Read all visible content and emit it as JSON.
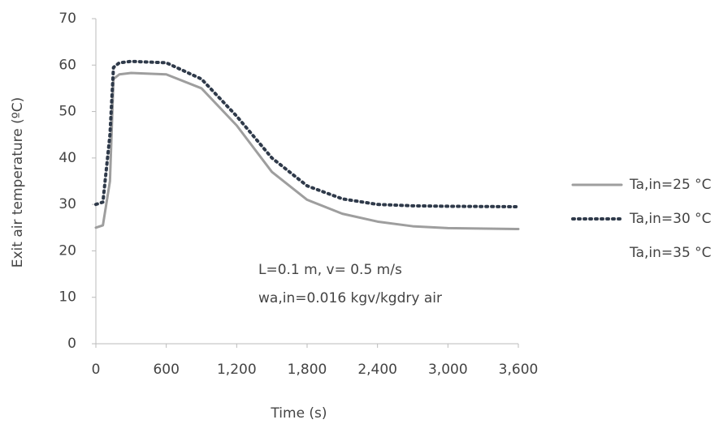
{
  "chart_data": {
    "type": "line",
    "x_label": "Time (s)",
    "y_label": "Exit air temperature (ºC)",
    "annotations": [
      "L=0.1 m, v= 0.5 m/s",
      "wa,in=0.016 kgv/kgdry air"
    ],
    "x": [
      0,
      60,
      120,
      150,
      200,
      300,
      600,
      900,
      1200,
      1500,
      1800,
      2100,
      2400,
      2700,
      3000,
      3600
    ],
    "series": [
      {
        "name": "Ta,in=25 °C",
        "color": "#9e9e9e",
        "style": "solid",
        "values": [
          25,
          25.5,
          35,
          57,
          58,
          58.3,
          58,
          55,
          47,
          37,
          31,
          28,
          26.3,
          25.3,
          24.9,
          24.7
        ]
      },
      {
        "name": "Ta,in=30 °C",
        "color": "#2f3a4a",
        "style": "dotted",
        "values": [
          30,
          30.5,
          45,
          59.5,
          60.5,
          60.8,
          60.5,
          57,
          49,
          40,
          34,
          31.2,
          30,
          29.7,
          29.6,
          29.5
        ]
      },
      {
        "name": "Ta,in=35 °C",
        "color": "#ffffff",
        "style": "solid",
        "values": [
          null,
          null,
          null,
          null,
          null,
          null,
          null,
          null,
          null,
          null,
          null,
          null,
          null,
          null,
          null,
          null
        ]
      }
    ],
    "xlim": [
      0,
      3600
    ],
    "xticks": [
      0,
      600,
      {
        "value": 1200,
        "label": "1,200"
      },
      {
        "value": 1800,
        "label": "1,800"
      },
      {
        "value": 2400,
        "label": "2,400"
      },
      {
        "value": 3000,
        "label": "3,000"
      },
      {
        "value": 3600,
        "label": "3,600"
      }
    ],
    "ylim": [
      0,
      70
    ],
    "yticks": [
      0,
      10,
      20,
      30,
      40,
      50,
      60,
      70
    ],
    "grid": false,
    "legend": "right"
  }
}
